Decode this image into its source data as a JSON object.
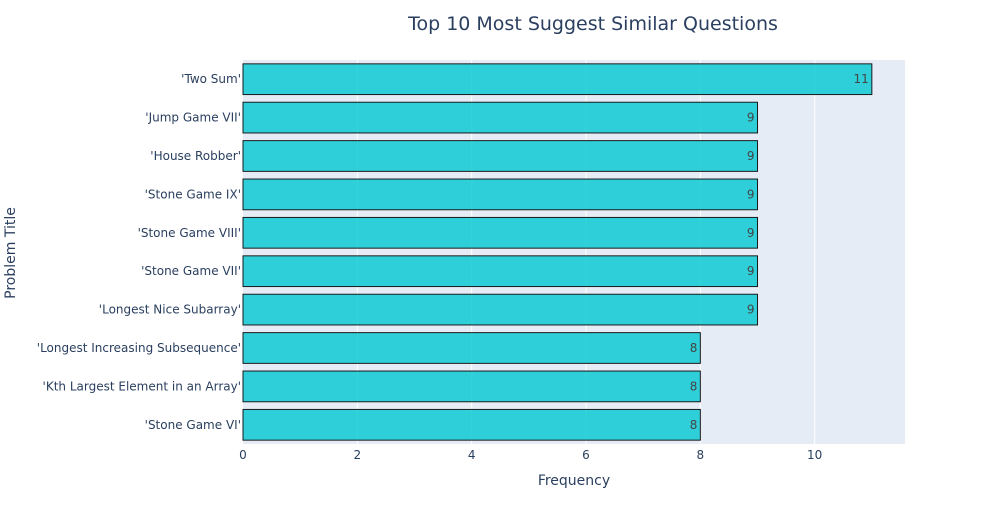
{
  "chart_data": {
    "type": "bar",
    "orientation": "horizontal",
    "title": "Top 10 Most Suggest Similar Questions",
    "xlabel": "Frequency",
    "ylabel": "Problem Title",
    "categories": [
      "'Two Sum'",
      "'Jump Game VII'",
      "'House Robber'",
      "'Stone Game IX'",
      "'Stone Game VIII'",
      "'Stone Game VII'",
      "'Longest Nice Subarray'",
      "'Longest Increasing Subsequence'",
      "'Kth Largest Element in an Array'",
      "'Stone Game VI'"
    ],
    "values": [
      11,
      9,
      9,
      9,
      9,
      9,
      9,
      8,
      8,
      8
    ],
    "xlim": [
      0,
      11.58
    ],
    "xticks": [
      0,
      2,
      4,
      6,
      8,
      10
    ],
    "grid": true,
    "bar_color": "#00c8d2",
    "bar_edge_color": "#1a1a1a",
    "plot_bg_color": "#e5ecf6"
  }
}
